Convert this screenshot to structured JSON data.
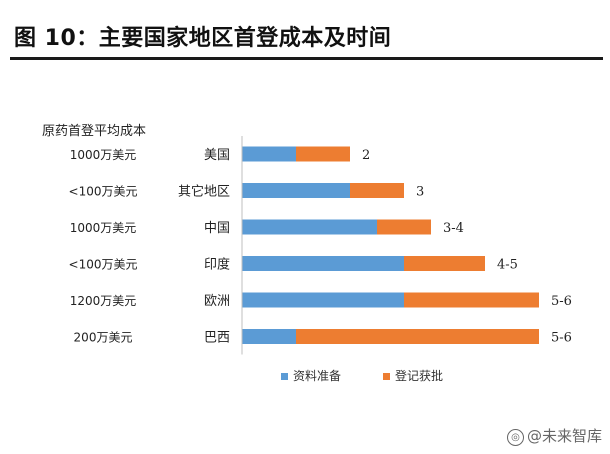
{
  "figure": {
    "title": "图 10：主要国家地区首登成本及时间",
    "watermark": "@未来智库",
    "watermark_icon": "logo-icon"
  },
  "chart_data": {
    "type": "bar",
    "orientation": "horizontal",
    "stacked": true,
    "cost_header": "原药首登平均成本",
    "categories": [
      "美国",
      "其它地区",
      "中国",
      "印度",
      "欧洲",
      "巴西"
    ],
    "costs": [
      "1000万美元",
      "<100万美元",
      "1000万美元",
      "<100万美元",
      "1200万美元",
      "200万美元"
    ],
    "series": [
      {
        "name": "资料准备",
        "color": "#5B9BD5",
        "values": [
          1,
          2,
          2.5,
          3,
          3,
          1
        ]
      },
      {
        "name": "登记获批",
        "color": "#ED7D31",
        "values": [
          1,
          1,
          1,
          1.5,
          2.5,
          4.5
        ]
      }
    ],
    "data_labels": [
      "2",
      "3",
      "3-4",
      "4-5",
      "5-6",
      "5-6"
    ],
    "xlim": [
      0,
      5.5
    ],
    "axis_visible": false,
    "grid": false,
    "legend_position": "bottom"
  }
}
